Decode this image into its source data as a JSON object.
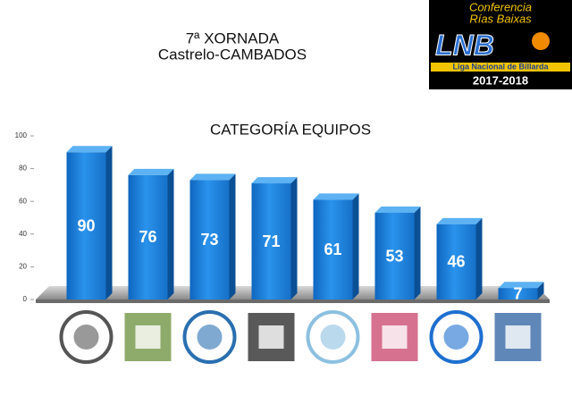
{
  "chart_data": {
    "type": "bar3d",
    "title": "7ª XORNADA",
    "subtitle": "Castrelo-CAMBADOS",
    "chart_title": "CATEGORÍA EQUIPOS",
    "badge": {
      "line1": "Conferencia",
      "line2": "Rías Baixas",
      "logo": "LNB",
      "league": "Liga Nacional de Billarda",
      "season": "2017-2018"
    },
    "categories": [
      null,
      null,
      null,
      null,
      null,
      null,
      null,
      null
    ],
    "values": [
      90,
      76,
      73,
      71,
      61,
      53,
      46,
      7
    ],
    "color": "#1e7fd8",
    "ylim": [
      0,
      100
    ],
    "yticks": [
      0,
      20,
      40,
      60,
      80,
      100
    ]
  }
}
